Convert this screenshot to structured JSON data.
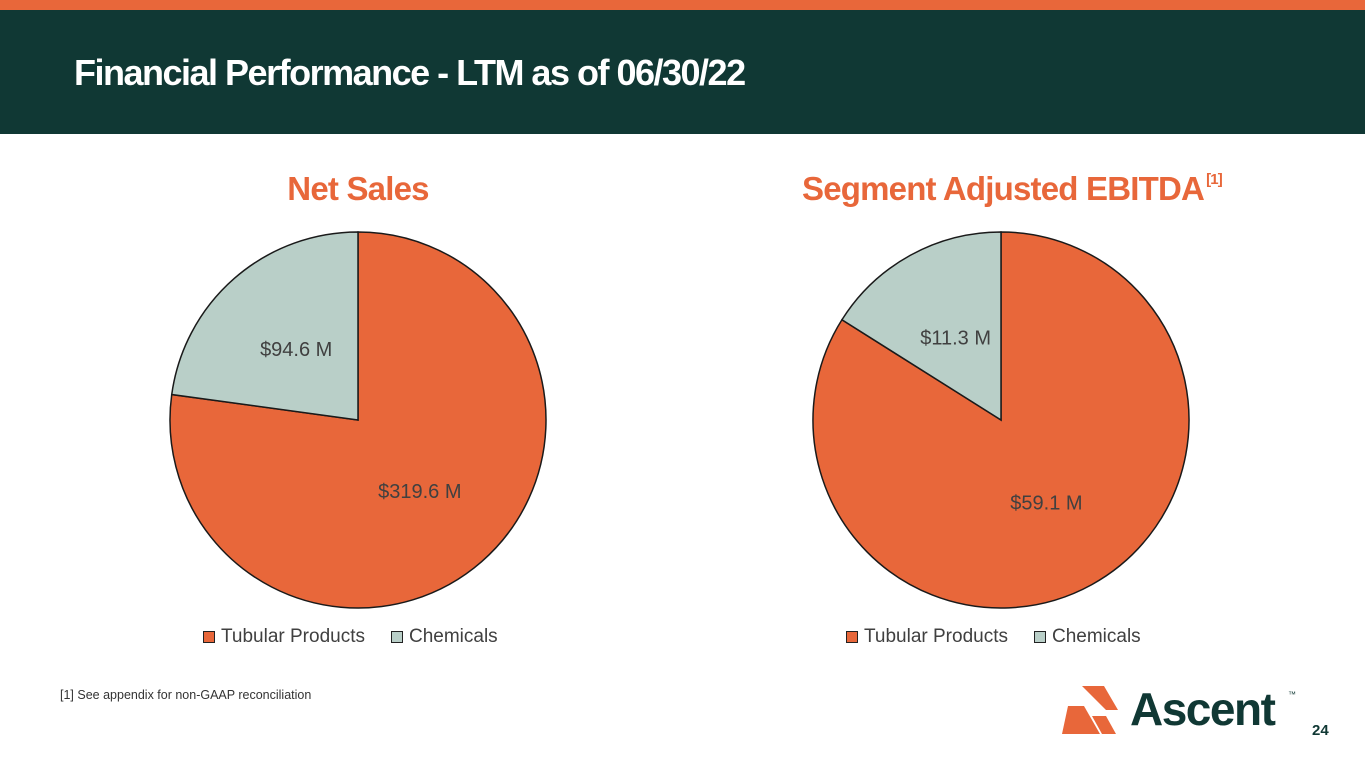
{
  "slide": {
    "title": "Financial Performance - LTM as of 06/30/22",
    "footnote": "[1] See appendix for non-GAAP reconciliation",
    "page_number": "24",
    "logo_text": "Ascent",
    "logo_tm": "™"
  },
  "colors": {
    "header_bg": "#103834",
    "accent": "#e8673a",
    "tubular": "#e8673a",
    "chemicals": "#b9cfc8"
  },
  "chart_data": [
    {
      "type": "pie",
      "title": "Net Sales",
      "title_sup": "",
      "categories": [
        "Tubular Products",
        "Chemicals"
      ],
      "values": [
        319.6,
        94.6
      ],
      "labels": [
        "$319.6 M",
        "$94.6 M"
      ],
      "start_angle": "12 o'clock",
      "direction": "clockwise",
      "legend": "bottom"
    },
    {
      "type": "pie",
      "title": "Segment Adjusted EBITDA",
      "title_sup": "[1]",
      "categories": [
        "Tubular Products",
        "Chemicals"
      ],
      "values": [
        59.1,
        11.3
      ],
      "labels": [
        "$59.1 M",
        "$11.3 M"
      ],
      "start_angle": "12 o'clock",
      "direction": "clockwise",
      "legend": "bottom"
    }
  ]
}
